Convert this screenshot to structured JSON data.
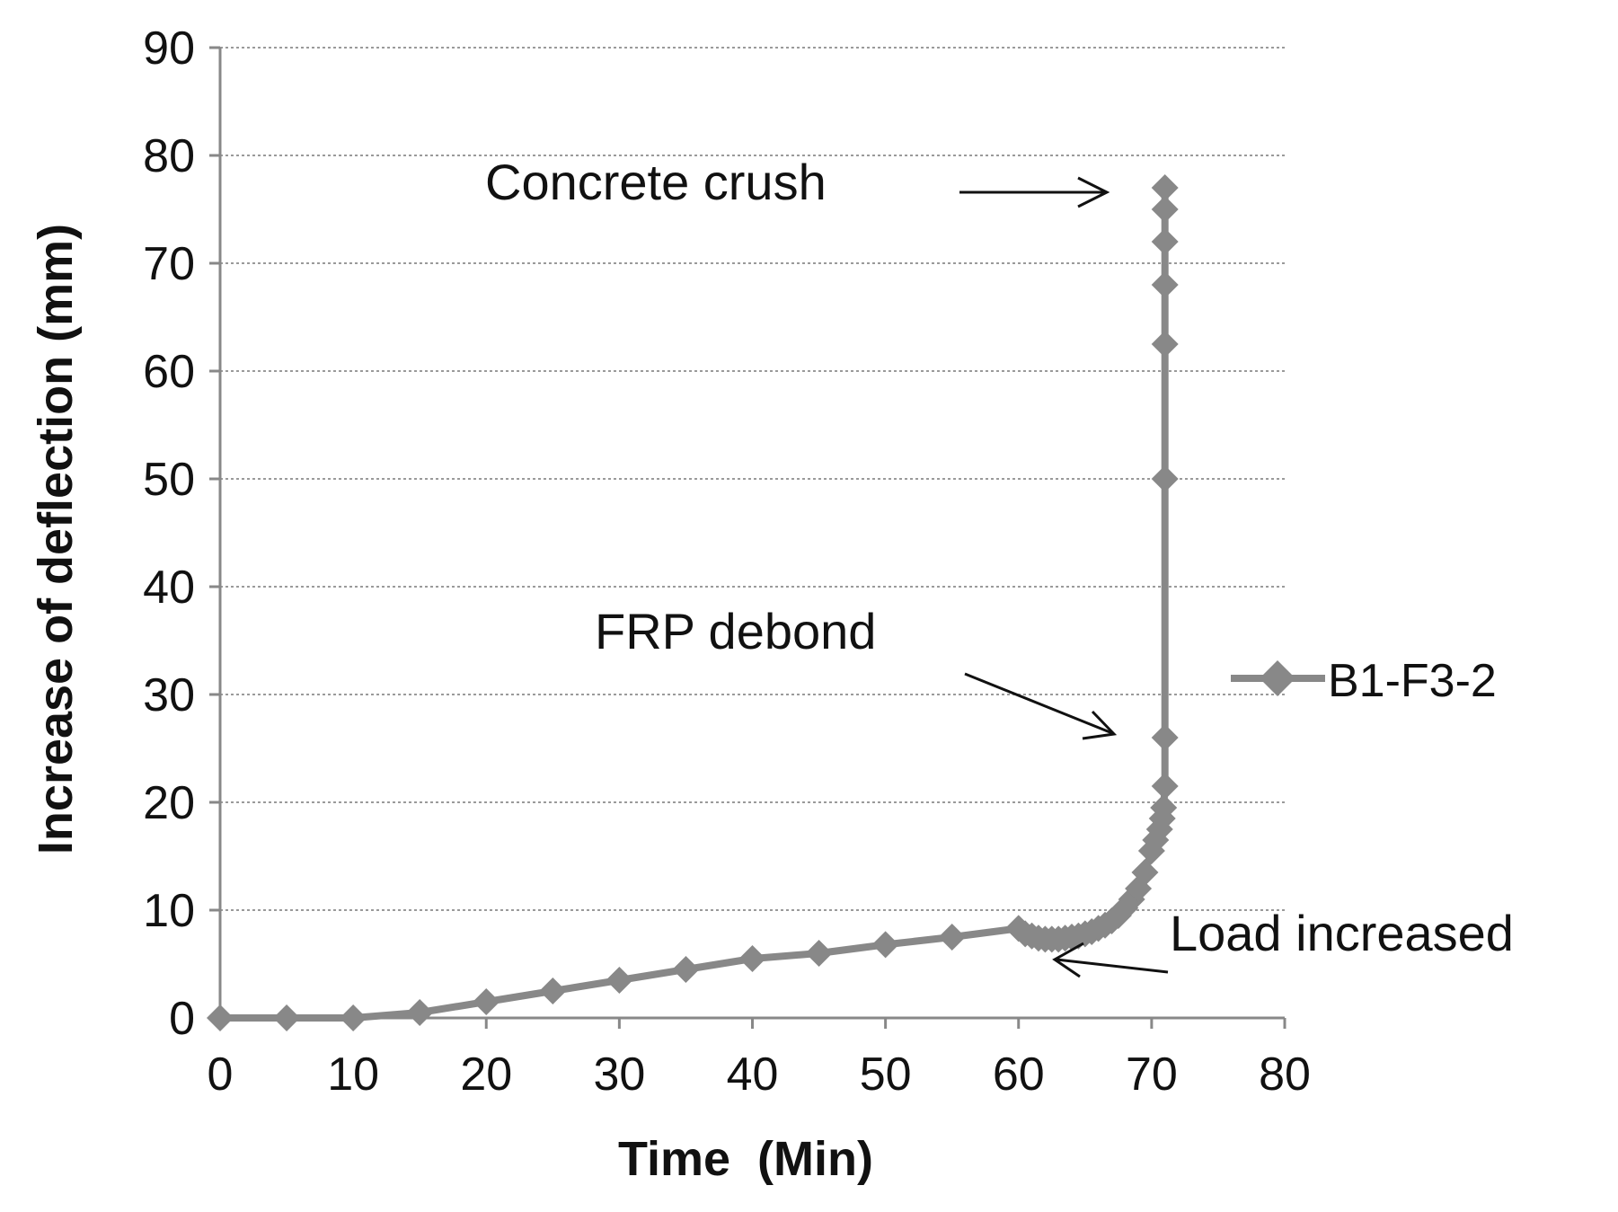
{
  "chart_data": {
    "type": "line",
    "title": "",
    "xlabel": "Time  (Min)",
    "ylabel": "Increase of deflection (mm)",
    "xlim": [
      0,
      80
    ],
    "ylim": [
      0,
      90
    ],
    "xticks": [
      0,
      10,
      20,
      30,
      40,
      50,
      60,
      70,
      80
    ],
    "yticks": [
      0,
      10,
      20,
      30,
      40,
      50,
      60,
      70,
      80,
      90
    ],
    "grid": "horizontal dotted",
    "legend_position": "right",
    "series": [
      {
        "name": "B1-F3-2",
        "color": "#888888",
        "marker": "diamond",
        "x": [
          0,
          5,
          10,
          15,
          20,
          25,
          30,
          35,
          40,
          45,
          50,
          55,
          60,
          60.5,
          61,
          61.5,
          62,
          62.5,
          63,
          63.5,
          64,
          64.5,
          65,
          65.5,
          66,
          66.5,
          67,
          67.5,
          68,
          68.5,
          69,
          69.5,
          70,
          70.3,
          70.6,
          70.8,
          70.9,
          71,
          71,
          71,
          71,
          71,
          71,
          71,
          71
        ],
        "y": [
          0,
          0,
          0,
          0.5,
          1.5,
          2.5,
          3.5,
          4.5,
          5.5,
          6,
          6.8,
          7.5,
          8.3,
          7.8,
          7.6,
          7.4,
          7.3,
          7.3,
          7.3,
          7.4,
          7.5,
          7.6,
          7.8,
          8,
          8.3,
          8.6,
          9,
          9.5,
          10.2,
          11,
          12,
          13.5,
          15.5,
          16.5,
          17.5,
          18.5,
          19.5,
          21.5,
          26,
          50,
          62.5,
          68,
          72,
          75,
          77
        ]
      }
    ],
    "annotations": [
      {
        "text": "Concrete crush",
        "x": 71,
        "y": 77
      },
      {
        "text": "FRP debond",
        "x": 67,
        "y": 26
      },
      {
        "text": "Load increased",
        "x": 63,
        "y": 5
      }
    ]
  }
}
